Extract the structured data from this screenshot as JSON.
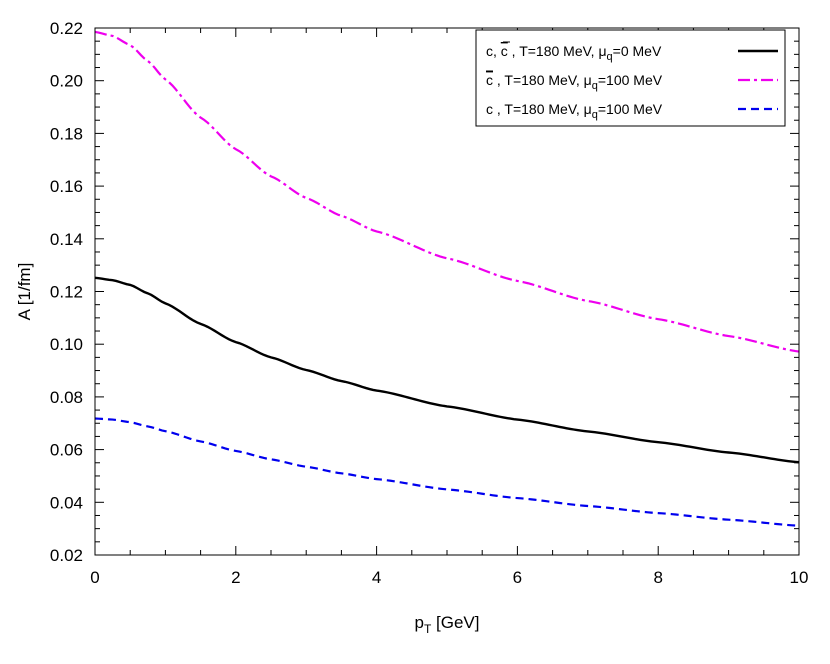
{
  "chart_data": {
    "type": "line",
    "xlim": [
      0,
      10
    ],
    "ylim": [
      0.02,
      0.22
    ],
    "xticks": [
      0,
      2,
      4,
      6,
      8,
      10
    ],
    "xtick_labels": [
      "0",
      "2",
      "4",
      "6",
      "8",
      "10"
    ],
    "yticks": [
      0.02,
      0.04,
      0.06,
      0.08,
      0.1,
      0.12,
      0.14,
      0.16,
      0.18,
      0.2,
      0.22
    ],
    "ytick_labels": [
      "0.02",
      "0.04",
      "0.06",
      "0.08",
      "0.10",
      "0.12",
      "0.14",
      "0.16",
      "0.18",
      "0.20",
      "0.22"
    ],
    "xlabel": {
      "main": "p",
      "sub": "T",
      "rest": " [GeV]"
    },
    "ylabel": "A [1/fm]",
    "grid": false,
    "legend_position": "top-right",
    "series": [
      {
        "name": "c, c̄ , T=180 MeV, μq=0 MeV",
        "legend": {
          "prefix": "c, ",
          "bar_char": "c",
          "middle": " , T=180 MeV, μ",
          "sub": "q",
          "suffix": "=0 MeV"
        },
        "color": "#000000",
        "style": "solid",
        "x": [
          0,
          0.25,
          0.5,
          0.75,
          1,
          1.5,
          2,
          2.5,
          3,
          3.5,
          4,
          5,
          6,
          7,
          8,
          9,
          10
        ],
        "y": [
          0.1252,
          0.1243,
          0.1225,
          0.1193,
          0.1155,
          0.1077,
          0.1008,
          0.095,
          0.0902,
          0.086,
          0.0824,
          0.0764,
          0.0714,
          0.0669,
          0.0628,
          0.0589,
          0.0552
        ]
      },
      {
        "name": "c̄ , T=180 MeV, μq=100 MeV",
        "legend": {
          "prefix": "",
          "bar_char": "c",
          "middle": " , T=180 MeV, μ",
          "sub": "q",
          "suffix": "=100 MeV"
        },
        "color": "#ee00ee",
        "style": "dashdot",
        "x": [
          0,
          0.25,
          0.5,
          0.75,
          1,
          1.5,
          2,
          2.5,
          3,
          3.5,
          4,
          5,
          6,
          7,
          8,
          9,
          10
        ],
        "y": [
          0.2185,
          0.217,
          0.2135,
          0.2075,
          0.2005,
          0.186,
          0.174,
          0.1637,
          0.1555,
          0.1487,
          0.1428,
          0.1326,
          0.124,
          0.1164,
          0.1095,
          0.1031,
          0.0972
        ]
      },
      {
        "name": "c , T=180 MeV, μq=100 MeV",
        "legend": {
          "prefix": "c",
          "bar_char": "",
          "middle": " , T=180 MeV, μ",
          "sub": "q",
          "suffix": "=100 MeV"
        },
        "color": "#0000ee",
        "style": "dashed",
        "x": [
          0,
          0.25,
          0.5,
          0.75,
          1,
          1.5,
          2,
          2.5,
          3,
          3.5,
          4,
          5,
          6,
          7,
          8,
          9,
          10
        ],
        "y": [
          0.0718,
          0.0714,
          0.0704,
          0.0688,
          0.067,
          0.0631,
          0.0595,
          0.0563,
          0.0535,
          0.051,
          0.0488,
          0.0449,
          0.0416,
          0.0386,
          0.0359,
          0.0334,
          0.0311
        ]
      }
    ]
  }
}
